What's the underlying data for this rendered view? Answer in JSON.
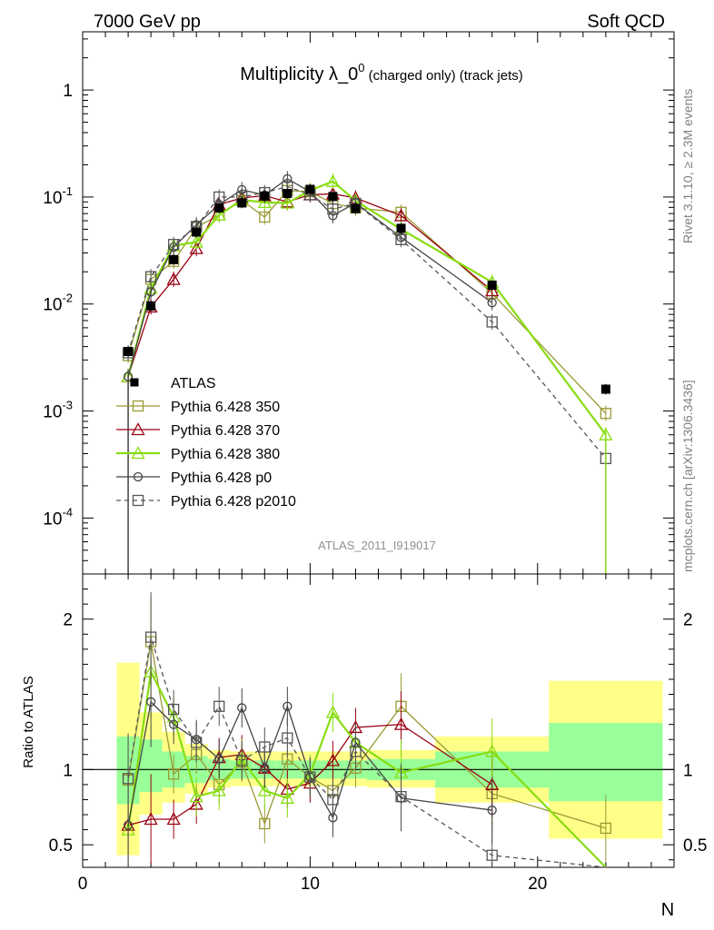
{
  "header": {
    "left": "7000 GeV pp",
    "right": "Soft QCD"
  },
  "title": {
    "main": "Multiplicity λ_0",
    "sup": "0",
    "tail": " (charged only) (track jets)"
  },
  "side_text": {
    "rivet": "Rivet 3.1.10, ≥ 2.3M events",
    "mcplots": "mcplots.cern.ch [arXiv:1306.3436]"
  },
  "analysis_label": "ATLAS_2011_I919017",
  "xlabel": "N",
  "ratio_ylabel": "Ratio to ATLAS",
  "colors": {
    "data": "#000000",
    "p350": "#999933",
    "p370": "#990011",
    "p380": "#88dd11",
    "p0": "#444444",
    "p2010": "#555555",
    "band_inner": "#99ff99",
    "band_outer": "#ffff88"
  },
  "chart_data": [
    {
      "type": "line",
      "panel": "main",
      "yscale": "log",
      "xlim": [
        0,
        26
      ],
      "ylim": [
        3e-05,
        3.5
      ],
      "yticks": [
        {
          "value": 1,
          "label": "1"
        },
        {
          "value": 0.1,
          "label": "10^-1"
        },
        {
          "value": 0.01,
          "label": "10^-2"
        },
        {
          "value": 0.001,
          "label": "10^-3"
        },
        {
          "value": 0.0001,
          "label": "10^-4"
        }
      ],
      "legend_position": "left",
      "data": {
        "name": "ATLAS",
        "x": [
          2,
          3,
          4,
          5,
          6,
          7,
          8,
          9,
          10,
          11,
          12,
          14,
          18,
          23
        ],
        "y": [
          0.0036,
          0.0096,
          0.026,
          0.047,
          0.079,
          0.088,
          0.102,
          0.108,
          0.118,
          0.101,
          0.078,
          0.051,
          0.015,
          0.0016
        ]
      },
      "series": [
        {
          "name": "Pythia 6.428 350",
          "marker": "square",
          "dashed": false,
          "x": [
            2,
            3,
            4,
            5,
            6,
            7,
            8,
            9,
            10,
            11,
            12,
            14,
            18,
            23
          ],
          "y": [
            0.0033,
            0.017,
            0.025,
            0.052,
            0.068,
            0.093,
            0.065,
            0.115,
            0.112,
            0.087,
            0.079,
            0.072,
            0.0126,
            0.00095
          ]
        },
        {
          "name": "Pythia 6.428 370",
          "marker": "triangle",
          "dashed": false,
          "x": [
            2,
            3,
            4,
            5,
            6,
            7,
            8,
            9,
            10,
            11,
            12,
            14,
            18
          ],
          "y": [
            0.0021,
            0.0094,
            0.017,
            0.033,
            0.085,
            0.098,
            0.103,
            0.09,
            0.105,
            0.107,
            0.098,
            0.067,
            0.0133
          ]
        },
        {
          "name": "Pythia 6.428 380",
          "marker": "triangle",
          "dashed": false,
          "x": [
            2,
            3,
            4,
            5,
            6,
            7,
            8,
            9,
            10,
            11,
            12,
            14,
            18,
            23
          ],
          "y": [
            0.0021,
            0.014,
            0.035,
            0.038,
            0.068,
            0.094,
            0.089,
            0.088,
            0.115,
            0.14,
            0.092,
            0.05,
            0.016,
            0.0006
          ]
        },
        {
          "name": "Pythia 6.428 p0",
          "marker": "circle",
          "dashed": false,
          "x": [
            2,
            3,
            4,
            5,
            6,
            7,
            8,
            9,
            10,
            11,
            12,
            14,
            18
          ],
          "y": [
            0.0021,
            0.013,
            0.034,
            0.055,
            0.085,
            0.117,
            0.104,
            0.148,
            0.112,
            0.067,
            0.088,
            0.042,
            0.0103
          ]
        },
        {
          "name": "Pythia 6.428 p2010",
          "marker": "square",
          "dashed": true,
          "x": [
            2,
            3,
            4,
            5,
            6,
            7,
            8,
            9,
            10,
            11,
            12,
            14,
            18,
            23
          ],
          "y": [
            0.0035,
            0.018,
            0.036,
            0.053,
            0.1,
            0.1,
            0.11,
            0.125,
            0.105,
            0.077,
            0.087,
            0.04,
            0.0068,
            0.00036
          ]
        }
      ]
    },
    {
      "type": "line",
      "panel": "ratio",
      "ylabel": "Ratio to ATLAS",
      "xlabel": "N",
      "xlim": [
        0,
        26
      ],
      "ylim": [
        0.35,
        2.3
      ],
      "xticks": [
        0,
        10,
        20
      ],
      "yticks": [
        0.5,
        1,
        2
      ],
      "bands": [
        {
          "x0": 1.5,
          "x1": 2.5,
          "inner": [
            0.77,
            1.22
          ],
          "outer": [
            0.43,
            1.71
          ]
        },
        {
          "x0": 2.5,
          "x1": 3.5,
          "inner": [
            0.85,
            1.2
          ],
          "outer": [
            0.7,
            1.38
          ]
        },
        {
          "x0": 3.5,
          "x1": 4.5,
          "inner": [
            0.88,
            1.12
          ],
          "outer": [
            0.78,
            1.25
          ]
        },
        {
          "x0": 4.5,
          "x1": 5.5,
          "inner": [
            0.91,
            1.09
          ],
          "outer": [
            0.84,
            1.17
          ]
        },
        {
          "x0": 5.5,
          "x1": 6.5,
          "inner": [
            0.93,
            1.07
          ],
          "outer": [
            0.88,
            1.13
          ]
        },
        {
          "x0": 6.5,
          "x1": 7.5,
          "inner": [
            0.94,
            1.06
          ],
          "outer": [
            0.89,
            1.12
          ]
        },
        {
          "x0": 7.5,
          "x1": 8.5,
          "inner": [
            0.94,
            1.06
          ],
          "outer": [
            0.89,
            1.12
          ]
        },
        {
          "x0": 8.5,
          "x1": 9.5,
          "inner": [
            0.94,
            1.06
          ],
          "outer": [
            0.89,
            1.12
          ]
        },
        {
          "x0": 9.5,
          "x1": 10.5,
          "inner": [
            0.94,
            1.06
          ],
          "outer": [
            0.89,
            1.12
          ]
        },
        {
          "x0": 10.5,
          "x1": 11.5,
          "inner": [
            0.94,
            1.06
          ],
          "outer": [
            0.89,
            1.12
          ]
        },
        {
          "x0": 11.5,
          "x1": 12.5,
          "inner": [
            0.94,
            1.06
          ],
          "outer": [
            0.89,
            1.12
          ]
        },
        {
          "x0": 12.5,
          "x1": 15.5,
          "inner": [
            0.93,
            1.07
          ],
          "outer": [
            0.88,
            1.13
          ]
        },
        {
          "x0": 15.5,
          "x1": 20.5,
          "inner": [
            0.88,
            1.12
          ],
          "outer": [
            0.78,
            1.22
          ]
        },
        {
          "x0": 20.5,
          "x1": 25.5,
          "inner": [
            0.79,
            1.31
          ],
          "outer": [
            0.54,
            1.59
          ]
        }
      ],
      "series": [
        {
          "name": "Pythia 6.428 350",
          "x": [
            2,
            3,
            4,
            5,
            6,
            7,
            8,
            9,
            10,
            11,
            12,
            14,
            18,
            23
          ],
          "y": [
            0.93,
            1.85,
            0.97,
            1.1,
            0.9,
            1.05,
            0.64,
            1.07,
            0.95,
            0.86,
            1.01,
            1.42,
            0.84,
            0.61
          ]
        },
        {
          "name": "Pythia 6.428 370",
          "x": [
            2,
            3,
            4,
            5,
            6,
            7,
            8,
            9,
            10,
            11,
            12,
            14,
            18
          ],
          "y": [
            0.63,
            0.67,
            0.67,
            0.77,
            1.08,
            1.1,
            1.01,
            0.87,
            0.91,
            1.06,
            1.28,
            1.3,
            0.9
          ]
        },
        {
          "name": "Pythia 6.428 380",
          "x": [
            2,
            3,
            4,
            5,
            6,
            7,
            8,
            9,
            10,
            11,
            12,
            14,
            18,
            23
          ],
          "y": [
            0.6,
            1.65,
            1.35,
            0.82,
            0.86,
            1.07,
            0.86,
            0.81,
            0.97,
            1.38,
            1.18,
            0.98,
            1.12,
            0.33
          ]
        },
        {
          "name": "Pythia 6.428 p0",
          "x": [
            2,
            3,
            4,
            5,
            6,
            7,
            8,
            9,
            10,
            11,
            12,
            14,
            18
          ],
          "y": [
            0.63,
            1.45,
            1.3,
            1.2,
            1.07,
            1.41,
            1.01,
            1.42,
            0.95,
            0.68,
            1.18,
            0.81,
            0.73
          ]
        },
        {
          "name": "Pythia 6.428 p2010",
          "x": [
            2,
            3,
            4,
            5,
            6,
            7,
            8,
            9,
            10,
            11,
            12,
            14,
            18,
            23
          ],
          "y": [
            0.94,
            1.88,
            1.4,
            1.18,
            1.42,
            1.06,
            1.15,
            1.21,
            0.95,
            0.8,
            1.12,
            0.82,
            0.43,
            0.22
          ]
        }
      ]
    }
  ]
}
